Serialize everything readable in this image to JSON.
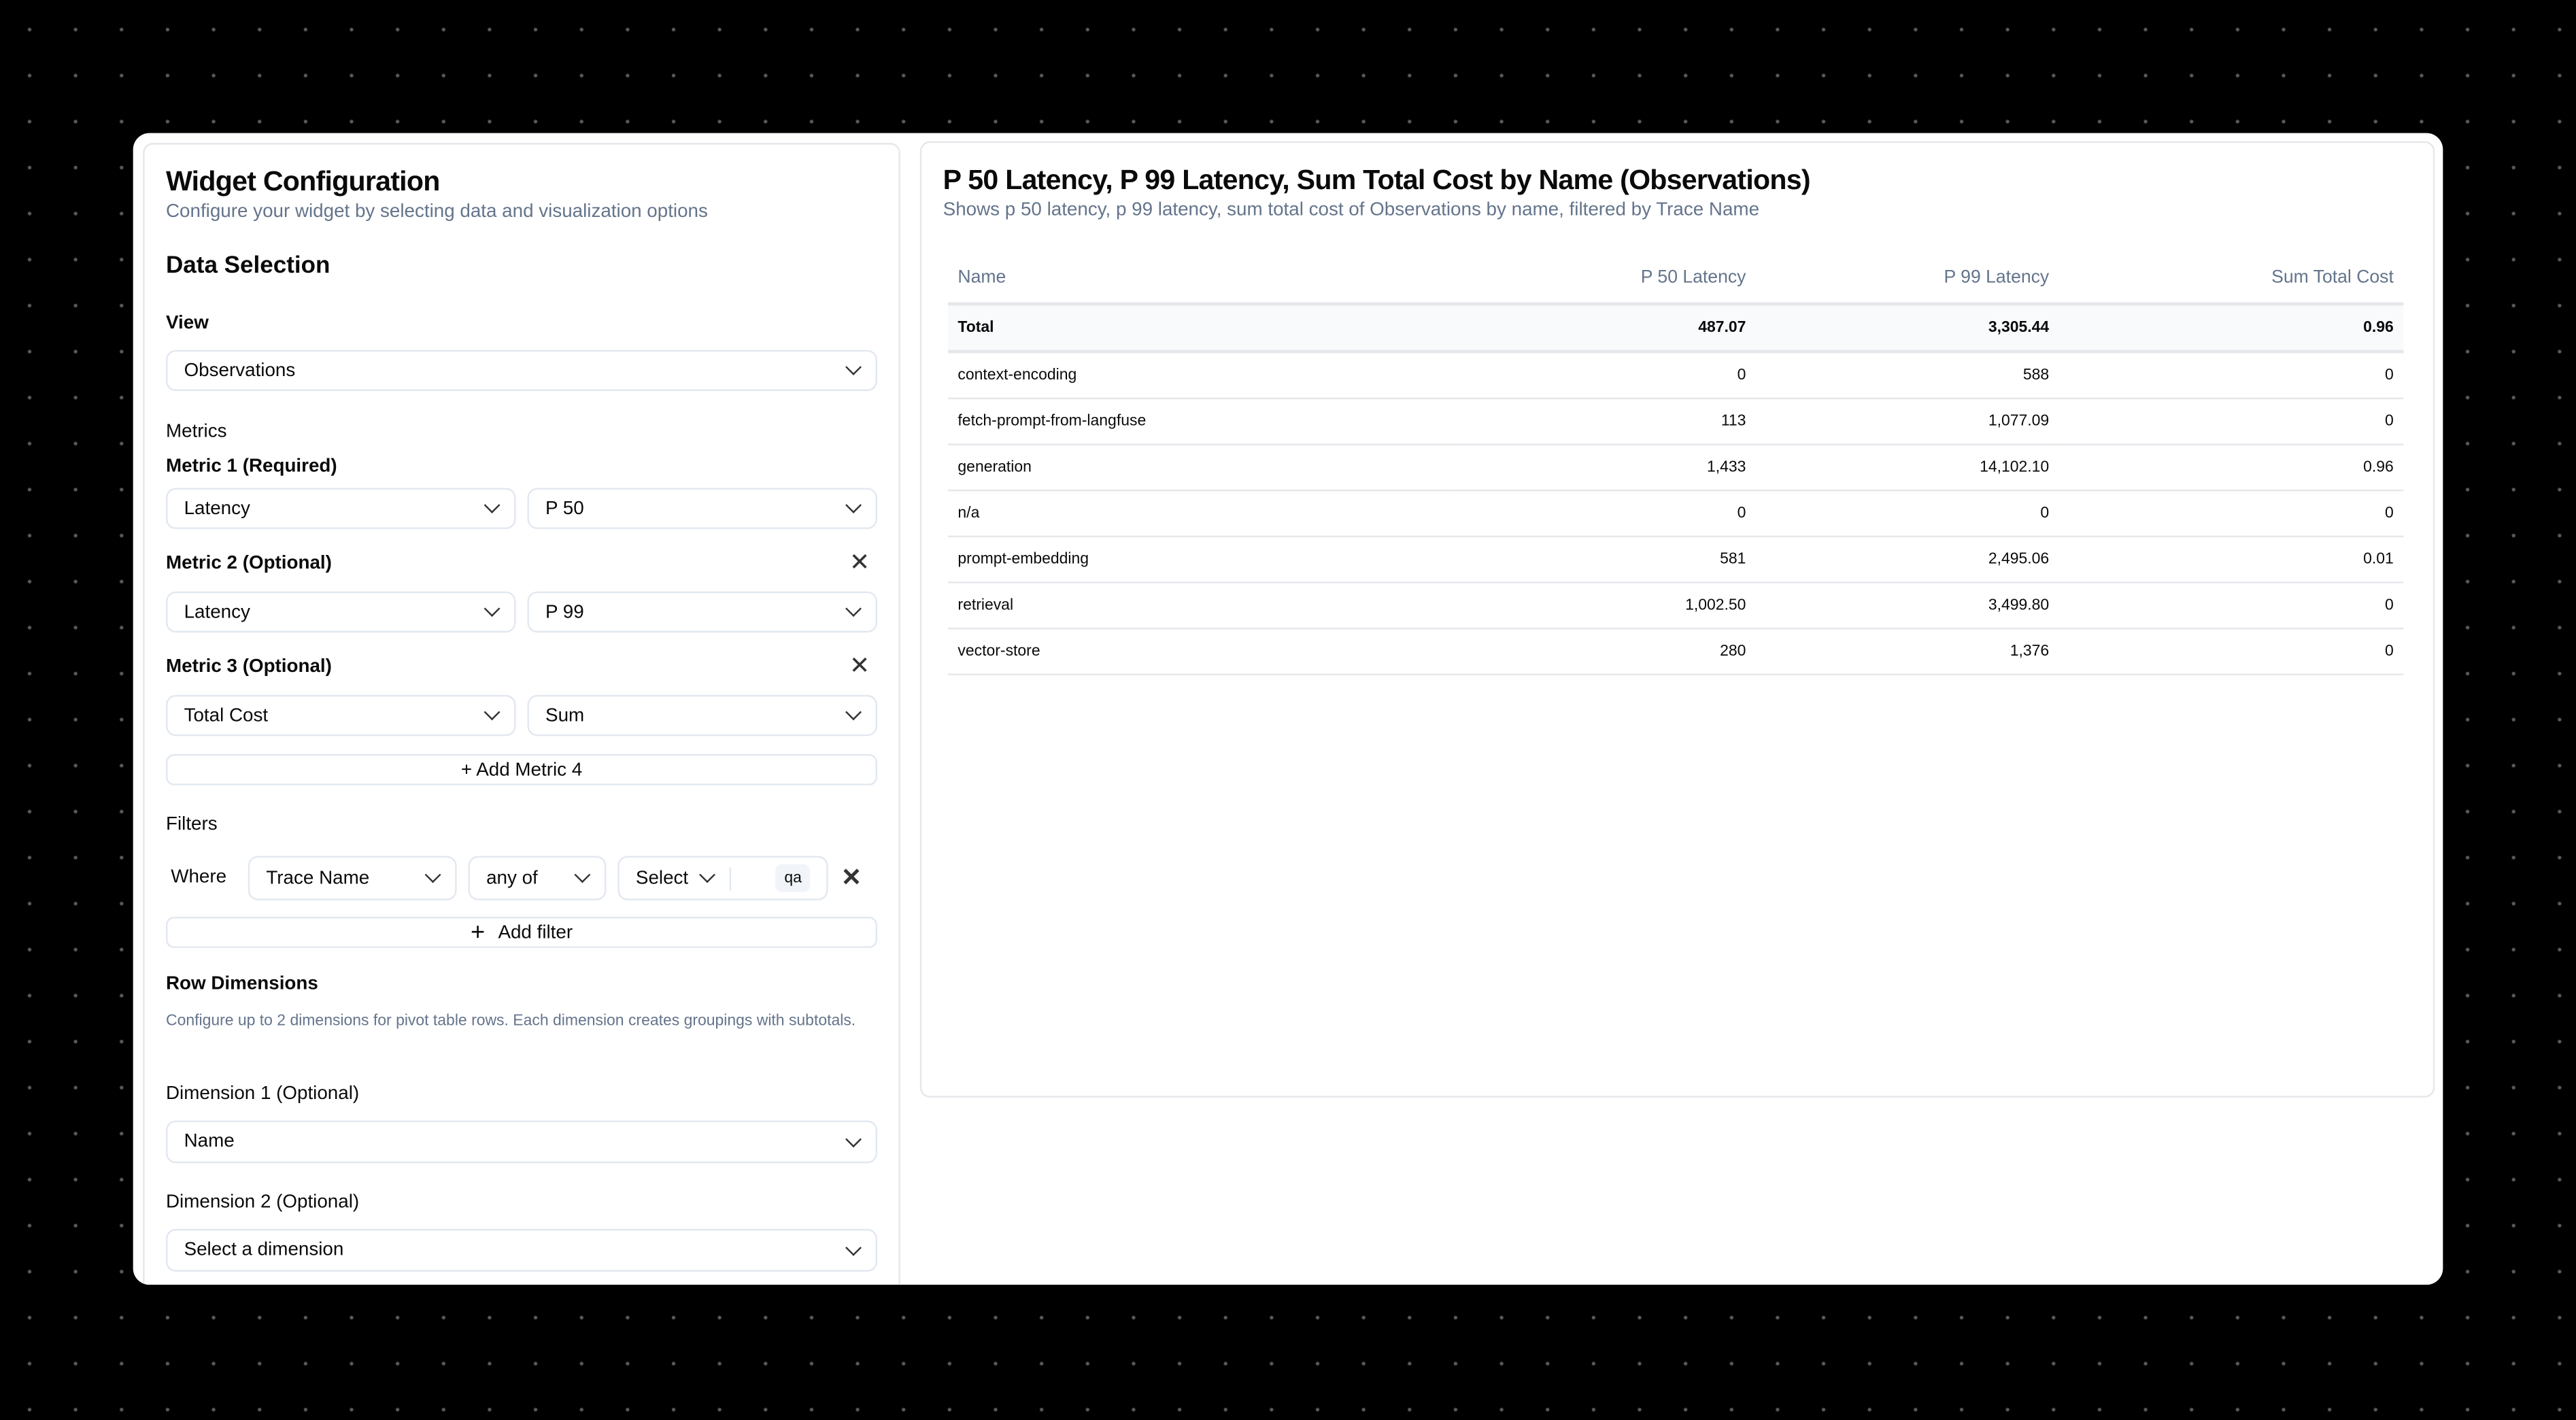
{
  "config": {
    "title": "Widget Configuration",
    "subtitle": "Configure your widget by selecting data and visualization options",
    "data_selection": "Data Selection",
    "view_label": "View",
    "view_value": "Observations",
    "metrics_label": "Metrics",
    "metrics": [
      {
        "label": "Metric 1 (Required)",
        "measure": "Latency",
        "aggregation": "P 50"
      },
      {
        "label": "Metric 2 (Optional)",
        "measure": "Latency",
        "aggregation": "P 99"
      },
      {
        "label": "Metric 3 (Optional)",
        "measure": "Total Cost",
        "aggregation": "Sum"
      }
    ],
    "add_metric": "+ Add Metric 4",
    "filters_label": "Filters",
    "filter": {
      "where": "Where",
      "column": "Trace Name",
      "operator": "any of",
      "value_placeholder": "Select",
      "chip": "qa"
    },
    "add_filter": "Add filter",
    "row_dimensions": "Row Dimensions",
    "row_dimensions_desc": "Configure up to 2 dimensions for pivot table rows. Each dimension creates groupings with subtotals.",
    "dim1_label": "Dimension 1 (Optional)",
    "dim1_value": "Name",
    "dim2_label": "Dimension 2 (Optional)",
    "dim2_placeholder": "Select a dimension"
  },
  "preview": {
    "title": "P 50 Latency, P 99 Latency, Sum Total Cost by Name (Observations)",
    "subtitle": "Shows p 50 latency, p 99 latency, sum total cost of Observations by name, filtered by Trace Name",
    "columns": [
      "Name",
      "P 50 Latency",
      "P 99 Latency",
      "Sum Total Cost"
    ],
    "total": [
      "Total",
      "487.07",
      "3,305.44",
      "0.96"
    ],
    "rows": [
      [
        "context-encoding",
        "0",
        "588",
        "0"
      ],
      [
        "fetch-prompt-from-langfuse",
        "113",
        "1,077.09",
        "0"
      ],
      [
        "generation",
        "1,433",
        "14,102.10",
        "0.96"
      ],
      [
        "n/a",
        "0",
        "0",
        "0"
      ],
      [
        "prompt-embedding",
        "581",
        "2,495.06",
        "0.01"
      ],
      [
        "retrieval",
        "1,002.50",
        "3,499.80",
        "0"
      ],
      [
        "vector-store",
        "280",
        "1,376",
        "0"
      ]
    ]
  }
}
